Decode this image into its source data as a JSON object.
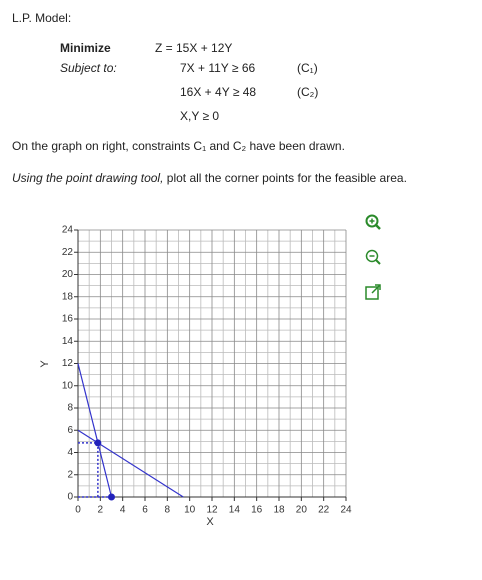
{
  "header": {
    "title": "L.P. Model:"
  },
  "model": {
    "objective_label": "Minimize",
    "objective": "Z = 15X + 12Y",
    "subject_label": "Subject to:",
    "constraints": [
      {
        "text": "7X + 11Y ≥ 66",
        "label": "(C₁)"
      },
      {
        "text": "16X + 4Y ≥ 48",
        "label": "(C₂)"
      }
    ],
    "nonnegativity": "X,Y ≥ 0"
  },
  "statement": "On the graph on right, constraints C₁ and C₂ have been drawn.",
  "instruction": {
    "italic": "Using the point drawing tool,",
    "text": " plot all the corner points for the feasible area."
  },
  "graph": {
    "x_label": "X",
    "y_label": "Y",
    "xlim": [
      0,
      24
    ],
    "ylim": [
      0,
      24
    ],
    "xticks": [
      0,
      2,
      4,
      6,
      8,
      10,
      12,
      14,
      16,
      18,
      20,
      22,
      24
    ],
    "yticks": [
      0,
      2,
      4,
      6,
      8,
      10,
      12,
      14,
      16,
      18,
      20,
      22,
      24
    ],
    "lines": [
      {
        "x": [
          0,
          3
        ],
        "y": [
          12,
          0
        ]
      },
      {
        "x": [
          0,
          9.43
        ],
        "y": [
          6,
          0
        ]
      }
    ],
    "points": {
      "x": [
        1.78,
        3
      ],
      "y": [
        4.86,
        0
      ]
    }
  }
}
